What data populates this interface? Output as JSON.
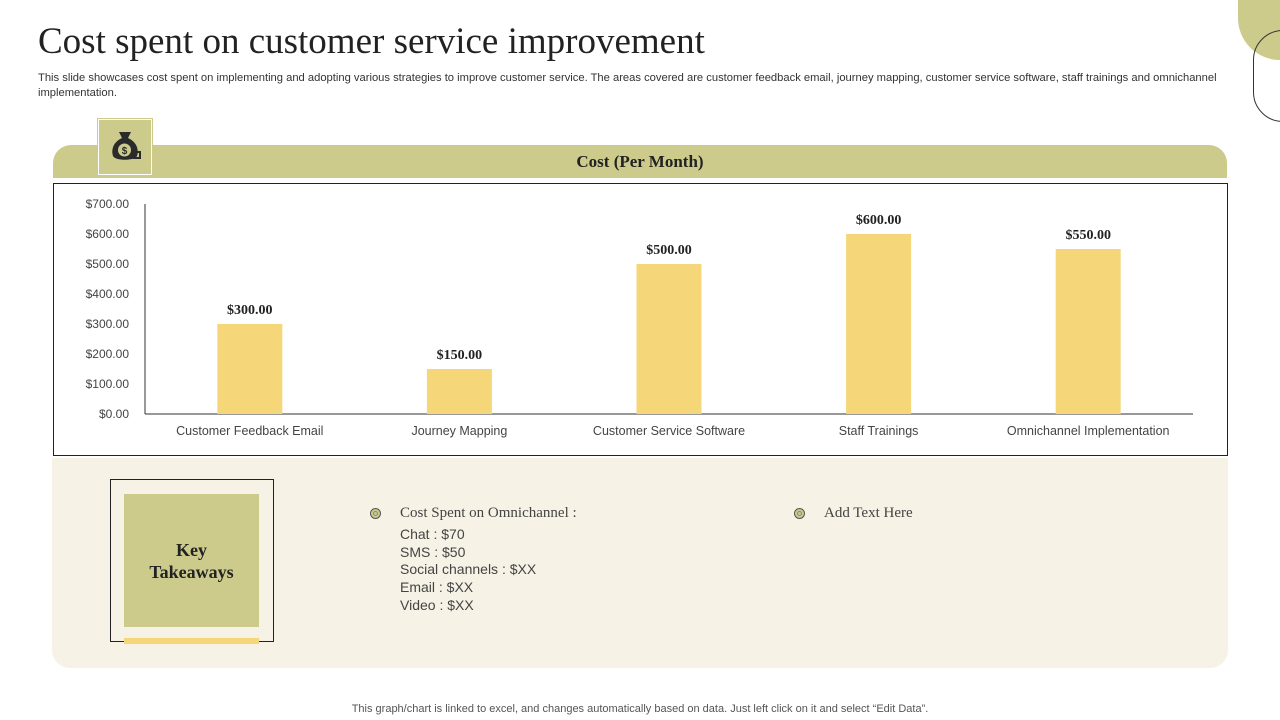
{
  "slide": {
    "title": "Cost spent on customer service improvement",
    "subtitle": "This slide showcases cost spent on implementing and adopting various strategies to improve customer service. The areas covered are customer feedback email, journey mapping, customer service software, staff trainings and omnichannel implementation.",
    "footnote": "This graph/chart is linked to excel,  and changes automatically based on data. Just left click on it and select “Edit Data”.",
    "icon": "money-bag-icon"
  },
  "colors": {
    "accent_olive": "#cccb8b",
    "bar_yellow": "#f5d77a",
    "panel_cream": "#f7f2e6"
  },
  "chart_data": {
    "type": "bar",
    "title": "Cost (Per Month)",
    "categories": [
      "Customer Feedback Email",
      "Journey Mapping",
      "Customer Service Software",
      "Staff Trainings",
      "Omnichannel Implementation"
    ],
    "values": [
      300,
      150,
      500,
      600,
      550
    ],
    "data_labels": [
      "$300.00",
      "$150.00",
      "$500.00",
      "$600.00",
      "$550.00"
    ],
    "yticks": [
      "$0.00",
      "$100.00",
      "$200.00",
      "$300.00",
      "$400.00",
      "$500.00",
      "$600.00",
      "$700.00"
    ],
    "ylim": [
      0,
      700
    ],
    "grid": false,
    "legend": "none"
  },
  "takeaways": {
    "label": "Key Takeaways",
    "point1": {
      "heading": "Cost Spent on Omnichannel  :",
      "items": [
        "Chat : $70",
        "SMS : $50",
        "Social channels : $XX",
        "Email : $XX",
        "Video  : $XX"
      ]
    },
    "point2": {
      "heading": "Add Text Here"
    }
  }
}
